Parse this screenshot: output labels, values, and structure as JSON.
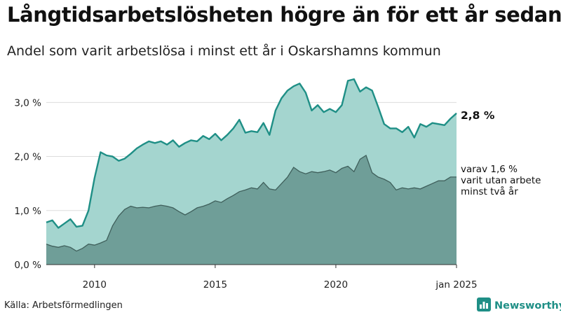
{
  "title": "Långtidsarbetslösheten högre än för ett år sedan",
  "subtitle": "Andel som varit arbetslösa i minst ett år i Oskarshamns kommun",
  "source": "Källa: Arbetsförmedlingen",
  "brand": {
    "label": "Newsworthy",
    "icon": "bar-chart-logo-icon"
  },
  "colors": {
    "total_line": "#1f8f86",
    "total_area": "#a4d5cf",
    "long_area": "#6f9e98",
    "long_line": "#3f5f5b",
    "grid": "#dddddd",
    "brand": "#1f8f86"
  },
  "chart_data": {
    "type": "area",
    "title": "Långtidsarbetslösheten högre än för ett år sedan",
    "subtitle": "Andel som varit arbetslösa i minst ett år i Oskarshamns kommun",
    "xlabel": "",
    "ylabel": "",
    "xlim": [
      2008.0,
      2025.0
    ],
    "ylim": [
      0,
      3.6
    ],
    "x_ticks": [
      {
        "x": 2010.0,
        "label": "2010"
      },
      {
        "x": 2015.0,
        "label": "2015"
      },
      {
        "x": 2020.0,
        "label": "2020"
      },
      {
        "x": 2025.0,
        "label": "jan 2025"
      }
    ],
    "y_ticks": [
      {
        "y": 0.0,
        "label": "0,0 %"
      },
      {
        "y": 1.0,
        "label": "1,0 %"
      },
      {
        "y": 2.0,
        "label": "2,0 %"
      },
      {
        "y": 3.0,
        "label": "3,0 %"
      }
    ],
    "grid": true,
    "x": [
      2008.0,
      2008.25,
      2008.5,
      2008.75,
      2009.0,
      2009.25,
      2009.5,
      2009.75,
      2010.0,
      2010.25,
      2010.5,
      2010.75,
      2011.0,
      2011.25,
      2011.5,
      2011.75,
      2012.0,
      2012.25,
      2012.5,
      2012.75,
      2013.0,
      2013.25,
      2013.5,
      2013.75,
      2014.0,
      2014.25,
      2014.5,
      2014.75,
      2015.0,
      2015.25,
      2015.5,
      2015.75,
      2016.0,
      2016.25,
      2016.5,
      2016.75,
      2017.0,
      2017.25,
      2017.5,
      2017.75,
      2018.0,
      2018.25,
      2018.5,
      2018.75,
      2019.0,
      2019.25,
      2019.5,
      2019.75,
      2020.0,
      2020.25,
      2020.5,
      2020.75,
      2021.0,
      2021.25,
      2021.5,
      2021.75,
      2022.0,
      2022.25,
      2022.5,
      2022.75,
      2023.0,
      2023.25,
      2023.5,
      2023.75,
      2024.0,
      2024.25,
      2024.5,
      2024.75,
      2025.0
    ],
    "series": [
      {
        "name": "",
        "values": [
          0.78,
          0.82,
          0.68,
          0.76,
          0.84,
          0.7,
          0.72,
          1.0,
          1.6,
          2.08,
          2.02,
          2.0,
          1.92,
          1.96,
          2.05,
          2.15,
          2.22,
          2.28,
          2.25,
          2.28,
          2.22,
          2.3,
          2.18,
          2.25,
          2.3,
          2.28,
          2.38,
          2.32,
          2.42,
          2.3,
          2.4,
          2.52,
          2.68,
          2.44,
          2.47,
          2.45,
          2.62,
          2.4,
          2.85,
          3.08,
          3.22,
          3.3,
          3.35,
          3.18,
          2.85,
          2.95,
          2.82,
          2.88,
          2.82,
          2.95,
          3.4,
          3.43,
          3.2,
          3.28,
          3.22,
          2.92,
          2.6,
          2.52,
          2.52,
          2.45,
          2.55,
          2.35,
          2.6,
          2.55,
          2.62,
          2.6,
          2.58,
          2.7,
          2.8
        ]
      },
      {
        "name": "",
        "values": [
          0.38,
          0.34,
          0.32,
          0.35,
          0.32,
          0.25,
          0.3,
          0.38,
          0.36,
          0.4,
          0.45,
          0.72,
          0.9,
          1.02,
          1.08,
          1.05,
          1.06,
          1.05,
          1.08,
          1.1,
          1.08,
          1.05,
          0.98,
          0.92,
          0.98,
          1.05,
          1.08,
          1.12,
          1.18,
          1.15,
          1.22,
          1.28,
          1.35,
          1.38,
          1.42,
          1.4,
          1.52,
          1.4,
          1.38,
          1.5,
          1.62,
          1.8,
          1.72,
          1.68,
          1.72,
          1.7,
          1.72,
          1.75,
          1.7,
          1.78,
          1.82,
          1.72,
          1.95,
          2.02,
          1.7,
          1.62,
          1.58,
          1.52,
          1.38,
          1.42,
          1.4,
          1.42,
          1.4,
          1.45,
          1.5,
          1.55,
          1.55,
          1.62,
          1.62
        ]
      }
    ],
    "annotations": [
      {
        "text": "2,8 %"
      },
      {
        "lines": [
          "varav 1,6 %",
          "varit utan arbete",
          "minst två år"
        ]
      }
    ]
  }
}
